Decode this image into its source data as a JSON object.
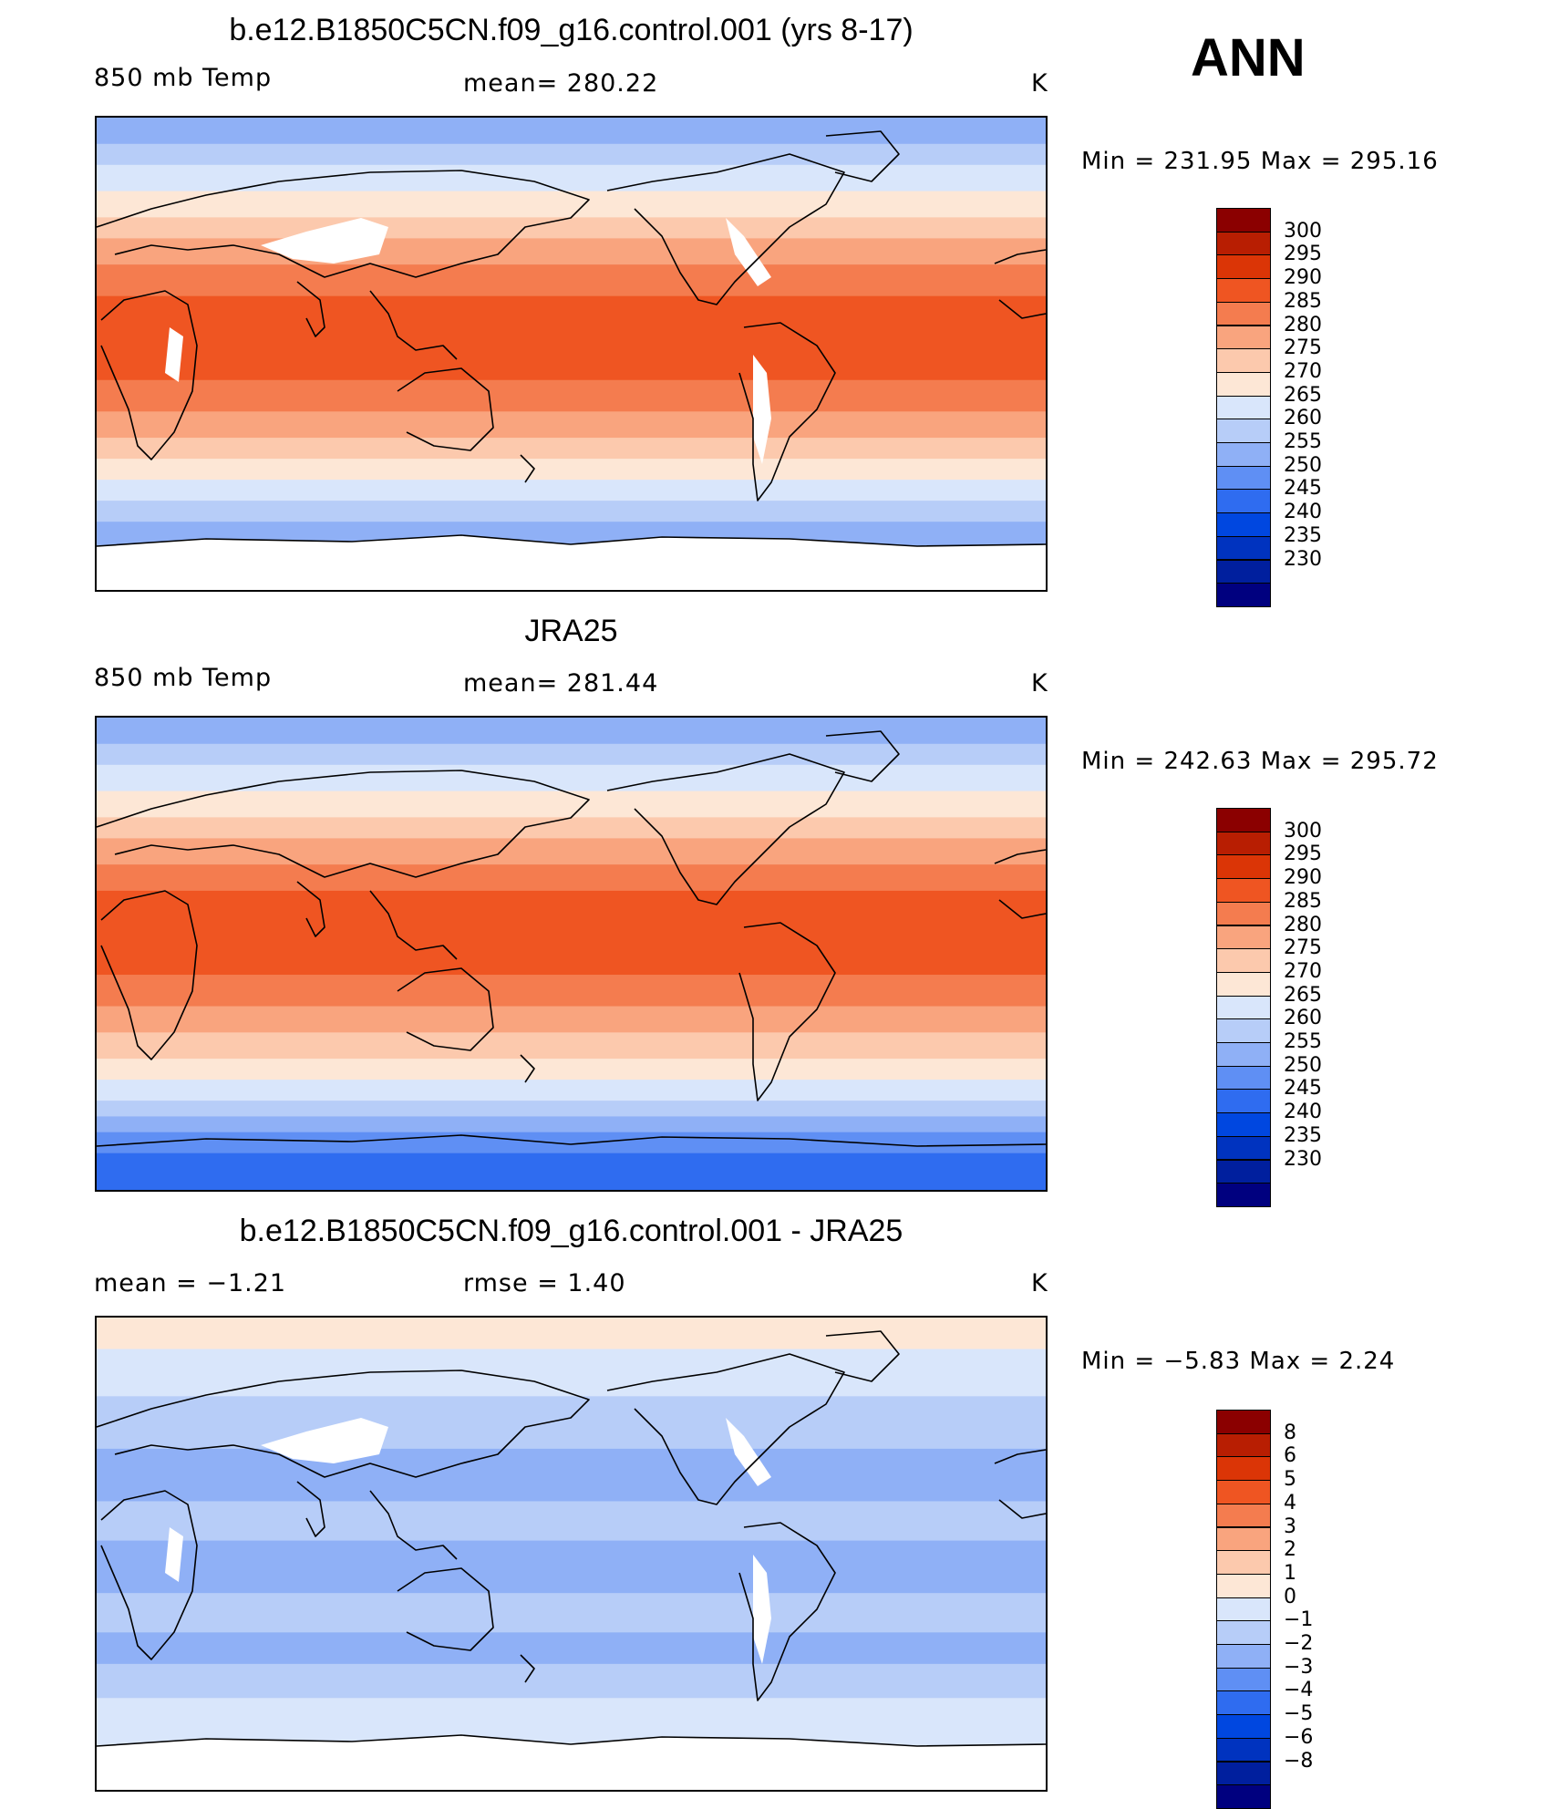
{
  "season": "ANN",
  "colors": {
    "temp_scale": [
      "#00007f",
      "#001f9e",
      "#0033bf",
      "#0047e0",
      "#2f6cf0",
      "#5f8ff4",
      "#8fb0f6",
      "#b7cdf8",
      "#d9e6fb",
      "#fde7d6",
      "#fcc9ad",
      "#f9a47e",
      "#f47c4f",
      "#ef5522",
      "#db3506",
      "#b81e02",
      "#8b0000"
    ],
    "land_mask": "#ffffff",
    "coast": "#000000"
  },
  "panels": [
    {
      "title": "b.e12.B1850C5CN.f09_g16.control.001 (yrs 8-17)",
      "left_label": "850 mb Temp",
      "center_label": "mean=  280.22",
      "units": "K",
      "minmax": "Min  =  231.95  Max  =  295.16",
      "colorbar": [
        "300",
        "295",
        "290",
        "285",
        "280",
        "275",
        "270",
        "265",
        "260",
        "255",
        "250",
        "245",
        "240",
        "235",
        "230"
      ]
    },
    {
      "title": "JRA25",
      "left_label": "850 mb Temp",
      "center_label": "mean=  281.44",
      "units": "K",
      "minmax": "Min  =  242.63  Max  =  295.72",
      "colorbar": [
        "300",
        "295",
        "290",
        "285",
        "280",
        "275",
        "270",
        "265",
        "260",
        "255",
        "250",
        "245",
        "240",
        "235",
        "230"
      ]
    },
    {
      "title": "b.e12.B1850C5CN.f09_g16.control.001 - JRA25",
      "left_label": "mean  =     −1.21",
      "center_label": "rmse  =      1.40",
      "units": "K",
      "minmax": "Min  =     −5.83  Max  =       2.24",
      "colorbar": [
        "8",
        "6",
        "5",
        "4",
        "3",
        "2",
        "1",
        "0",
        "−1",
        "−2",
        "−3",
        "−4",
        "−5",
        "−6",
        "−8"
      ]
    }
  ]
}
